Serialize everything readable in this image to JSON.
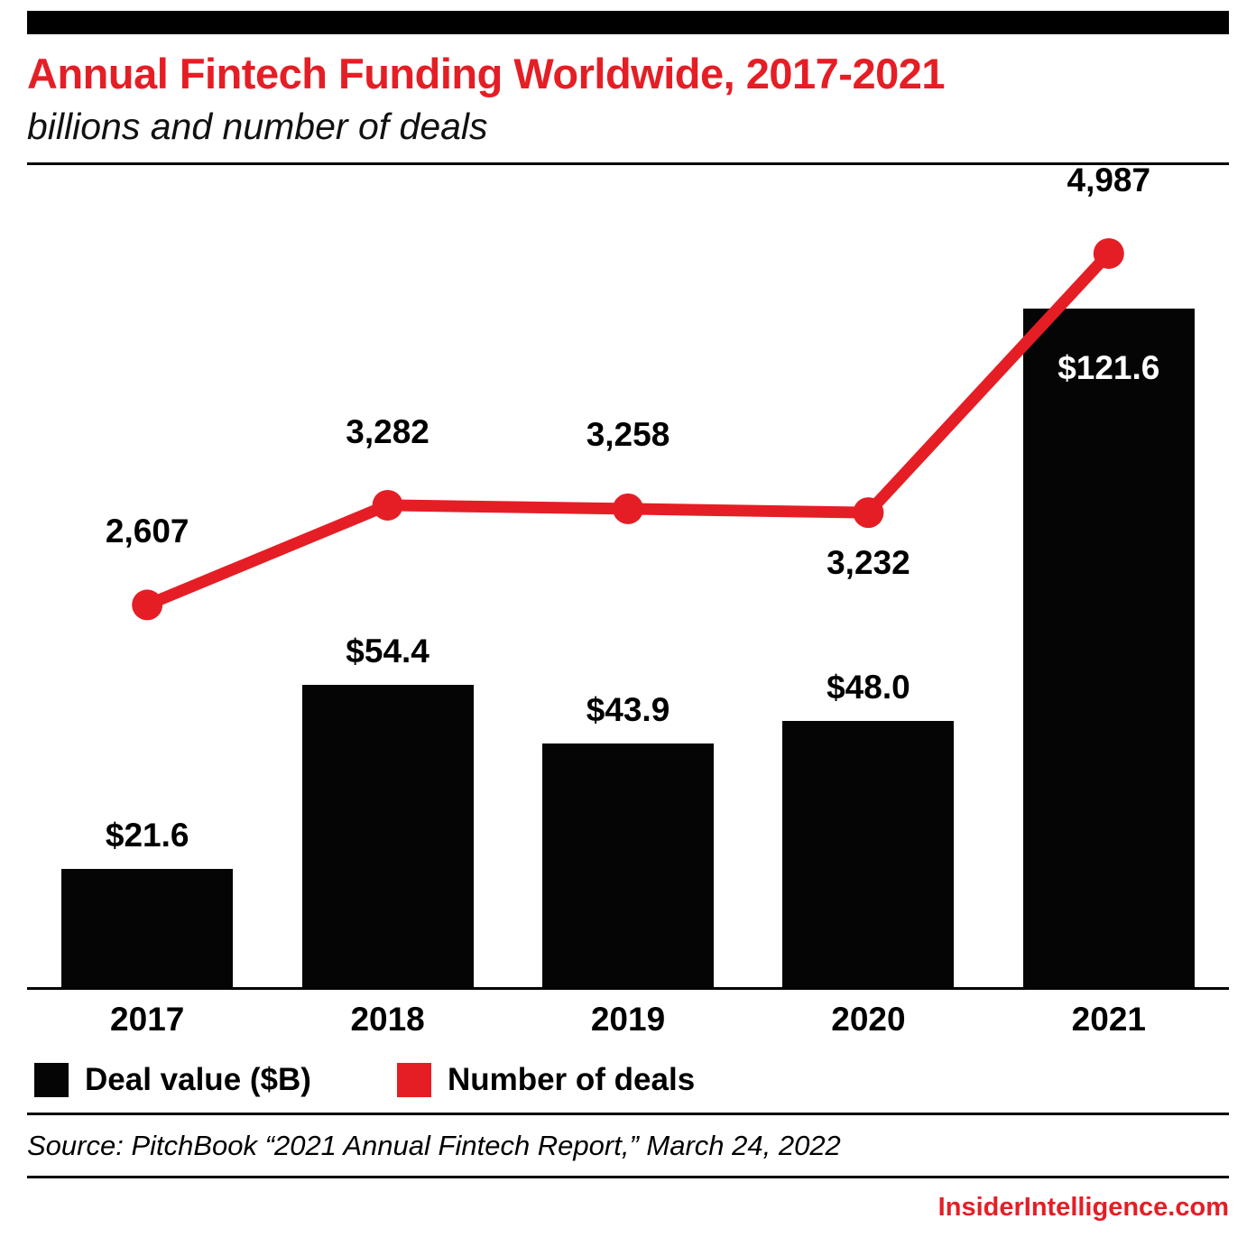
{
  "header": {
    "title": "Annual Fintech Funding Worldwide, 2017-2021",
    "subtitle": "billions and number of deals"
  },
  "chart_data": {
    "type": "bar+line",
    "title": "Annual Fintech Funding Worldwide, 2017-2021",
    "subtitle": "billions and number of deals",
    "categories": [
      "2017",
      "2018",
      "2019",
      "2020",
      "2021"
    ],
    "series": [
      {
        "name": "Deal value ($B)",
        "type": "bar",
        "color": "#050505",
        "values": [
          21.6,
          54.4,
          43.9,
          48.0,
          121.6
        ],
        "labels": [
          "$21.6",
          "$54.4",
          "$43.9",
          "$48.0",
          "$121.6"
        ],
        "label_inside": [
          false,
          false,
          false,
          false,
          true
        ],
        "ylim": [
          0,
          145
        ]
      },
      {
        "name": "Number of deals",
        "type": "line",
        "color": "#e51e25",
        "values": [
          2607,
          3282,
          3258,
          3232,
          4987
        ],
        "labels": [
          "2,607",
          "3,282",
          "3,258",
          "3,232",
          "4,987"
        ],
        "label_pos": [
          "above",
          "above",
          "above",
          "below",
          "above"
        ],
        "ylim": [
          0,
          5500
        ]
      }
    ],
    "legend_position": "bottom",
    "grid": false
  },
  "footer": {
    "source": "Source: PitchBook “2021 Annual Fintech Report,” March 24, 2022",
    "brand": "InsiderIntelligence.com"
  }
}
